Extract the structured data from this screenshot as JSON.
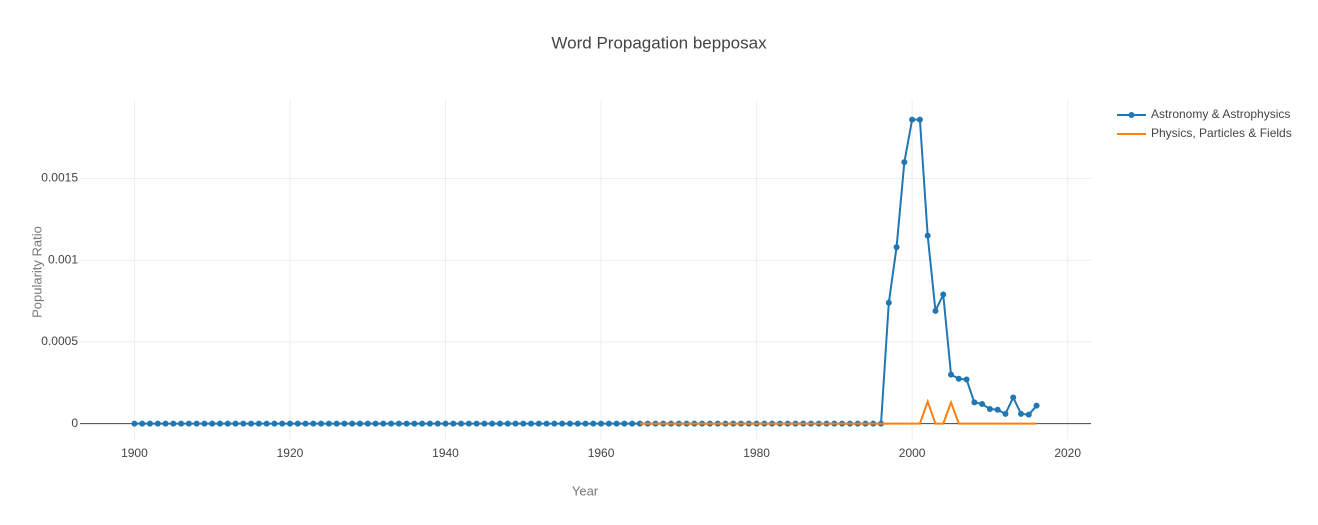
{
  "chart_data": {
    "type": "line",
    "title": "Word Propagation bepposax",
    "x_label": "Year",
    "y_label": "Popularity Ratio",
    "x": [
      1900,
      1901,
      1902,
      1903,
      1904,
      1905,
      1906,
      1907,
      1908,
      1909,
      1910,
      1911,
      1912,
      1913,
      1914,
      1915,
      1916,
      1917,
      1918,
      1919,
      1920,
      1921,
      1922,
      1923,
      1924,
      1925,
      1926,
      1927,
      1928,
      1929,
      1930,
      1931,
      1932,
      1933,
      1934,
      1935,
      1936,
      1937,
      1938,
      1939,
      1940,
      1941,
      1942,
      1943,
      1944,
      1945,
      1946,
      1947,
      1948,
      1949,
      1950,
      1951,
      1952,
      1953,
      1954,
      1955,
      1956,
      1957,
      1958,
      1959,
      1960,
      1961,
      1962,
      1963,
      1964,
      1965,
      1966,
      1967,
      1968,
      1969,
      1970,
      1971,
      1972,
      1973,
      1974,
      1975,
      1976,
      1977,
      1978,
      1979,
      1980,
      1981,
      1982,
      1983,
      1984,
      1985,
      1986,
      1987,
      1988,
      1989,
      1990,
      1991,
      1992,
      1993,
      1994,
      1995,
      1996,
      1997,
      1998,
      1999,
      2000,
      2001,
      2002,
      2003,
      2004,
      2005,
      2006,
      2007,
      2008,
      2009,
      2010,
      2011,
      2012,
      2013,
      2014,
      2015,
      2016
    ],
    "series": [
      {
        "name": "Astronomy & Astrophysics",
        "color": "#1f77b4",
        "markers": true,
        "values": [
          0,
          0,
          0,
          0,
          0,
          0,
          0,
          0,
          0,
          0,
          0,
          0,
          0,
          0,
          0,
          0,
          0,
          0,
          0,
          0,
          0,
          0,
          0,
          0,
          0,
          0,
          0,
          0,
          0,
          0,
          0,
          0,
          0,
          0,
          0,
          0,
          0,
          0,
          0,
          0,
          0,
          0,
          0,
          0,
          0,
          0,
          0,
          0,
          0,
          0,
          0,
          0,
          0,
          0,
          0,
          0,
          0,
          0,
          0,
          0,
          0,
          0,
          0,
          0,
          0,
          0,
          0,
          0,
          0,
          0,
          0,
          0,
          0,
          0,
          0,
          0,
          0,
          0,
          0,
          0,
          0,
          0,
          0,
          0,
          0,
          0,
          0,
          0,
          0,
          0,
          0,
          0,
          0,
          0,
          0,
          0,
          0,
          0.00074,
          0.00108,
          0.0016,
          0.00186,
          0.00186,
          0.00115,
          0.00069,
          0.00079,
          0.0003,
          0.000275,
          0.00027,
          0.00013,
          0.00012,
          9e-05,
          8.5e-05,
          6e-05,
          0.00016,
          6e-05,
          5.5e-05,
          0.00011
        ]
      },
      {
        "name": "Physics, Particles & Fields",
        "color": "#ff7f0e",
        "markers": false,
        "values": [
          null,
          null,
          null,
          null,
          null,
          null,
          null,
          null,
          null,
          null,
          null,
          null,
          null,
          null,
          null,
          null,
          null,
          null,
          null,
          null,
          null,
          null,
          null,
          null,
          null,
          null,
          null,
          null,
          null,
          null,
          null,
          null,
          null,
          null,
          null,
          null,
          null,
          null,
          null,
          null,
          null,
          null,
          null,
          null,
          null,
          null,
          null,
          null,
          null,
          null,
          null,
          null,
          null,
          null,
          null,
          null,
          null,
          null,
          null,
          null,
          null,
          null,
          null,
          null,
          null,
          0,
          0,
          0,
          0,
          0,
          0,
          0,
          0,
          0,
          0,
          0,
          0,
          0,
          0,
          0,
          0,
          0,
          0,
          0,
          0,
          0,
          0,
          0,
          0,
          0,
          0,
          0,
          0,
          0,
          0,
          0,
          0,
          0,
          0,
          0,
          0,
          0,
          0.000135,
          0,
          0,
          0.00013,
          0,
          0,
          0,
          0,
          0,
          0,
          0,
          0,
          0,
          0,
          0
        ]
      }
    ],
    "xlim": [
      1893,
      2023
    ],
    "ylim": [
      -0.0001,
      0.00198
    ],
    "xticks": [
      1900,
      1920,
      1940,
      1960,
      1980,
      2000,
      2020
    ],
    "yticks": [
      0,
      0.0005,
      0.001,
      0.0015
    ],
    "grid": true,
    "legend": "top-right"
  }
}
